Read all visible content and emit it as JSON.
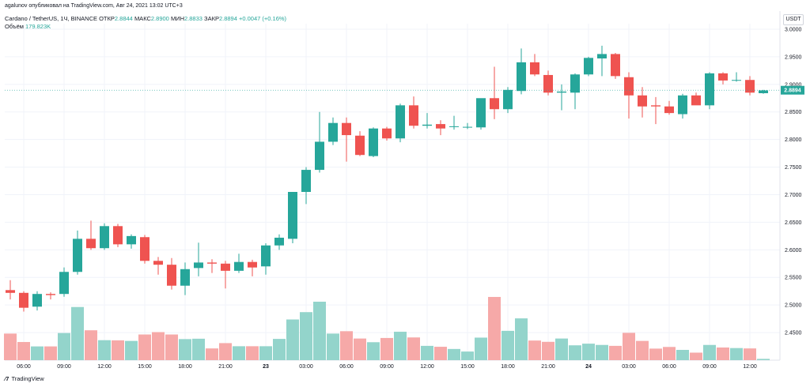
{
  "header": {
    "published_by": "agalunov опубликовал на TradingView.com, Авг 24, 2021 13:02 UTC+3"
  },
  "legend": {
    "symbol": "Cardano / TetherUS, 1Ч, BINANCE",
    "open_label": "ОТКР",
    "open_value": "2.8844",
    "high_label": "МАКС",
    "high_value": "2.8900",
    "low_label": "МИН",
    "low_value": "2.8833",
    "close_label": "ЗАКР",
    "close_value": "2.8894",
    "change": "+0.0047 (+0.16%)",
    "volume_label": "Объём",
    "volume_value": "179.823K"
  },
  "currency_label": "USDT",
  "last_price_label": "2.8894",
  "footer": {
    "brand": "TradingView"
  },
  "colors": {
    "up": "#26a69a",
    "down": "#ef5350",
    "up_vol": "#93d4cb",
    "down_vol": "#f6a9a8",
    "grid": "#f0f3fa",
    "text": "#131722"
  },
  "chart_data": {
    "type": "candlestick",
    "title": "Cardano / TetherUS, 1Ч, BINANCE",
    "xlabel": "",
    "ylabel": "USDT",
    "ylim": [
      2.4,
      3.01
    ],
    "y_ticks": [
      "3.0000",
      "2.9500",
      "2.9000",
      "2.8500",
      "2.8000",
      "2.7500",
      "2.7000",
      "2.6500",
      "2.6000",
      "2.5500",
      "2.5000",
      "2.4500"
    ],
    "x_ticks": [
      {
        "label": "06:00",
        "index": 1
      },
      {
        "label": "09:00",
        "index": 4
      },
      {
        "label": "12:00",
        "index": 7
      },
      {
        "label": "15:00",
        "index": 10
      },
      {
        "label": "18:00",
        "index": 13
      },
      {
        "label": "21:00",
        "index": 16
      },
      {
        "label": "23",
        "index": 19
      },
      {
        "label": "03:00",
        "index": 22
      },
      {
        "label": "06:00",
        "index": 25
      },
      {
        "label": "09:00",
        "index": 28
      },
      {
        "label": "12:00",
        "index": 31
      },
      {
        "label": "15:00",
        "index": 34
      },
      {
        "label": "18:00",
        "index": 37
      },
      {
        "label": "21:00",
        "index": 40
      },
      {
        "label": "24",
        "index": 43
      },
      {
        "label": "03:00",
        "index": 46
      },
      {
        "label": "06:00",
        "index": 49
      },
      {
        "label": "09:00",
        "index": 52
      },
      {
        "label": "12:00",
        "index": 55
      }
    ],
    "last_price": 2.8894,
    "candles": [
      {
        "o": 2.527,
        "h": 2.545,
        "l": 2.51,
        "c": 2.522
      },
      {
        "o": 2.522,
        "h": 2.525,
        "l": 2.488,
        "c": 2.495
      },
      {
        "o": 2.497,
        "h": 2.525,
        "l": 2.49,
        "c": 2.52
      },
      {
        "o": 2.52,
        "h": 2.523,
        "l": 2.51,
        "c": 2.518
      },
      {
        "o": 2.52,
        "h": 2.568,
        "l": 2.515,
        "c": 2.56
      },
      {
        "o": 2.56,
        "h": 2.635,
        "l": 2.555,
        "c": 2.62
      },
      {
        "o": 2.62,
        "h": 2.653,
        "l": 2.6,
        "c": 2.603
      },
      {
        "o": 2.603,
        "h": 2.648,
        "l": 2.6,
        "c": 2.643
      },
      {
        "o": 2.643,
        "h": 2.647,
        "l": 2.605,
        "c": 2.61
      },
      {
        "o": 2.61,
        "h": 2.628,
        "l": 2.602,
        "c": 2.625
      },
      {
        "o": 2.623,
        "h": 2.627,
        "l": 2.575,
        "c": 2.58
      },
      {
        "o": 2.58,
        "h": 2.587,
        "l": 2.555,
        "c": 2.573
      },
      {
        "o": 2.573,
        "h": 2.585,
        "l": 2.528,
        "c": 2.535
      },
      {
        "o": 2.535,
        "h": 2.577,
        "l": 2.518,
        "c": 2.565
      },
      {
        "o": 2.567,
        "h": 2.613,
        "l": 2.552,
        "c": 2.577
      },
      {
        "o": 2.577,
        "h": 2.583,
        "l": 2.558,
        "c": 2.575
      },
      {
        "o": 2.575,
        "h": 2.58,
        "l": 2.53,
        "c": 2.562
      },
      {
        "o": 2.562,
        "h": 2.593,
        "l": 2.558,
        "c": 2.578
      },
      {
        "o": 2.578,
        "h": 2.582,
        "l": 2.552,
        "c": 2.568
      },
      {
        "o": 2.57,
        "h": 2.612,
        "l": 2.555,
        "c": 2.608
      },
      {
        "o": 2.608,
        "h": 2.628,
        "l": 2.6,
        "c": 2.622
      },
      {
        "o": 2.62,
        "h": 2.705,
        "l": 2.612,
        "c": 2.705
      },
      {
        "o": 2.705,
        "h": 2.75,
        "l": 2.683,
        "c": 2.745
      },
      {
        "o": 2.745,
        "h": 2.85,
        "l": 2.74,
        "c": 2.796
      },
      {
        "o": 2.796,
        "h": 2.84,
        "l": 2.79,
        "c": 2.83
      },
      {
        "o": 2.83,
        "h": 2.84,
        "l": 2.76,
        "c": 2.808
      },
      {
        "o": 2.807,
        "h": 2.815,
        "l": 2.77,
        "c": 2.772
      },
      {
        "o": 2.77,
        "h": 2.822,
        "l": 2.768,
        "c": 2.82
      },
      {
        "o": 2.82,
        "h": 2.823,
        "l": 2.798,
        "c": 2.802
      },
      {
        "o": 2.802,
        "h": 2.865,
        "l": 2.795,
        "c": 2.862
      },
      {
        "o": 2.862,
        "h": 2.878,
        "l": 2.82,
        "c": 2.825
      },
      {
        "o": 2.825,
        "h": 2.848,
        "l": 2.82,
        "c": 2.827
      },
      {
        "o": 2.828,
        "h": 2.835,
        "l": 2.808,
        "c": 2.82
      },
      {
        "o": 2.824,
        "h": 2.843,
        "l": 2.818,
        "c": 2.824
      },
      {
        "o": 2.823,
        "h": 2.83,
        "l": 2.819,
        "c": 2.823
      },
      {
        "o": 2.822,
        "h": 2.873,
        "l": 2.818,
        "c": 2.875
      },
      {
        "o": 2.875,
        "h": 2.932,
        "l": 2.837,
        "c": 2.855
      },
      {
        "o": 2.855,
        "h": 2.895,
        "l": 2.848,
        "c": 2.89
      },
      {
        "o": 2.888,
        "h": 2.965,
        "l": 2.882,
        "c": 2.94
      },
      {
        "o": 2.94,
        "h": 2.955,
        "l": 2.915,
        "c": 2.918
      },
      {
        "o": 2.917,
        "h": 2.925,
        "l": 2.88,
        "c": 2.885
      },
      {
        "o": 2.885,
        "h": 2.9,
        "l": 2.853,
        "c": 2.887
      },
      {
        "o": 2.885,
        "h": 2.92,
        "l": 2.855,
        "c": 2.918
      },
      {
        "o": 2.918,
        "h": 2.95,
        "l": 2.915,
        "c": 2.948
      },
      {
        "o": 2.947,
        "h": 2.97,
        "l": 2.915,
        "c": 2.955
      },
      {
        "o": 2.955,
        "h": 2.957,
        "l": 2.91,
        "c": 2.915
      },
      {
        "o": 2.913,
        "h": 2.922,
        "l": 2.838,
        "c": 2.88
      },
      {
        "o": 2.88,
        "h": 2.895,
        "l": 2.84,
        "c": 2.86
      },
      {
        "o": 2.862,
        "h": 2.877,
        "l": 2.828,
        "c": 2.86
      },
      {
        "o": 2.86,
        "h": 2.87,
        "l": 2.845,
        "c": 2.848
      },
      {
        "o": 2.846,
        "h": 2.883,
        "l": 2.838,
        "c": 2.88
      },
      {
        "o": 2.88,
        "h": 2.885,
        "l": 2.865,
        "c": 2.862
      },
      {
        "o": 2.862,
        "h": 2.922,
        "l": 2.855,
        "c": 2.92
      },
      {
        "o": 2.92,
        "h": 2.922,
        "l": 2.9,
        "c": 2.907
      },
      {
        "o": 2.907,
        "h": 2.922,
        "l": 2.905,
        "c": 2.908
      },
      {
        "o": 2.908,
        "h": 2.915,
        "l": 2.88,
        "c": 2.885
      },
      {
        "o": 2.884,
        "h": 2.89,
        "l": 2.883,
        "c": 2.889
      }
    ],
    "volume_max": 1000,
    "volume": [
      290,
      198,
      150,
      150,
      296,
      580,
      326,
      218,
      216,
      210,
      280,
      306,
      280,
      230,
      234,
      128,
      186,
      152,
      152,
      152,
      232,
      444,
      524,
      638,
      290,
      316,
      236,
      196,
      242,
      310,
      248,
      156,
      146,
      122,
      94,
      246,
      690,
      320,
      456,
      214,
      200,
      236,
      162,
      180,
      166,
      156,
      298,
      210,
      126,
      144,
      112,
      82,
      166,
      138,
      132,
      128,
      14
    ]
  }
}
